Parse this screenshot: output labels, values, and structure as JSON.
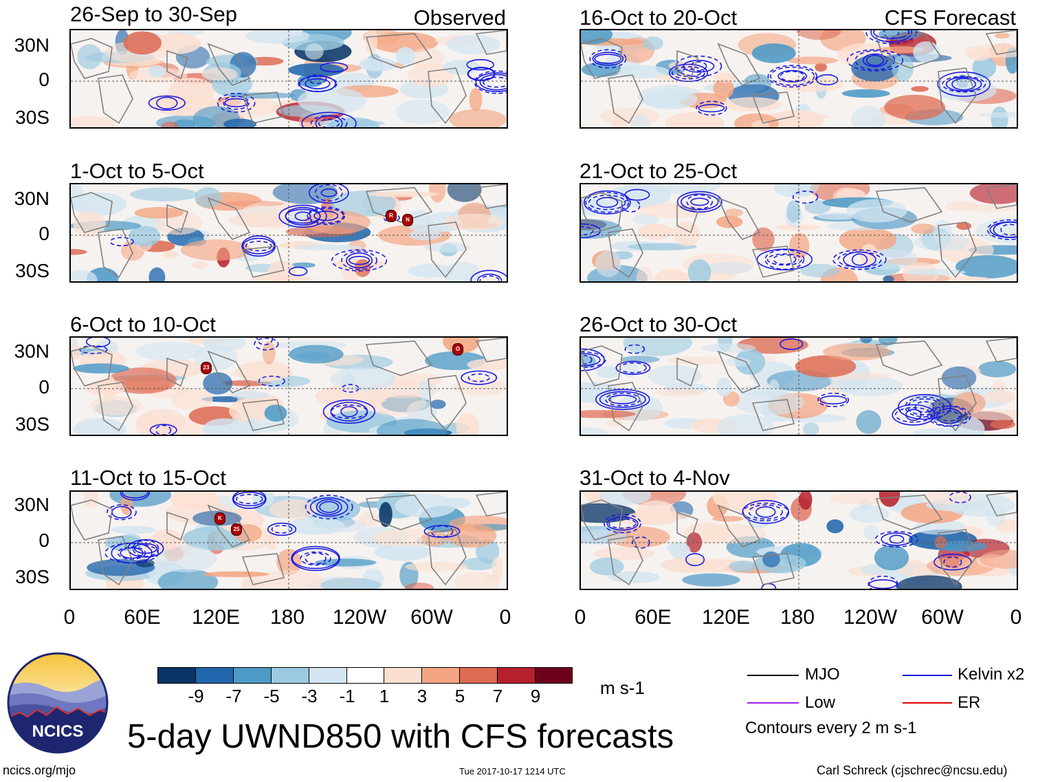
{
  "colors": {
    "pos1": "#fbe0d2",
    "pos3": "#f4a683",
    "pos5": "#de6b54",
    "pos7": "#b7202d",
    "pos9": "#6d011b",
    "neg1": "#d3e5f0",
    "neg3": "#9ccae0",
    "neg5": "#4d9ac6",
    "neg7": "#2166ac",
    "neg9": "#083467",
    "kelvin": "#1a1ae0",
    "mjo": "#000000",
    "low": "#a020f0",
    "er": "#e00000",
    "land": "#808080"
  },
  "panels": {
    "left": [
      {
        "title": "26-Sep to 30-Sep",
        "tag": "Observed",
        "storms": []
      },
      {
        "title": "1-Oct to 5-Oct",
        "tag": "",
        "storms": [
          "R",
          "N"
        ]
      },
      {
        "title": "6-Oct to 10-Oct",
        "tag": "",
        "storms": [
          "23",
          "O"
        ]
      },
      {
        "title": "11-Oct to 15-Oct",
        "tag": "",
        "storms": [
          "K",
          "25"
        ]
      }
    ],
    "right": [
      {
        "title": "16-Oct to 20-Oct",
        "tag": "CFS Forecast"
      },
      {
        "title": "21-Oct to 25-Oct",
        "tag": ""
      },
      {
        "title": "26-Oct to 30-Oct",
        "tag": ""
      },
      {
        "title": "31-Oct to 4-Nov",
        "tag": ""
      }
    ]
  },
  "lat_labels": [
    "30N",
    "0",
    "30S"
  ],
  "lon_labels": [
    "0",
    "60E",
    "120E",
    "180",
    "120W",
    "60W",
    "0"
  ],
  "colorbar": {
    "ticks": [
      "-9",
      "-7",
      "-5",
      "-3",
      "-1",
      "1",
      "3",
      "5",
      "7",
      "9"
    ],
    "units": "m s-1"
  },
  "legend": {
    "mjo": "MJO",
    "kelvin": "Kelvin x2",
    "low": "Low",
    "er": "ER",
    "note": "Contours every 2 m s-1"
  },
  "logo": {
    "text": "NCICS"
  },
  "main_title": "5-day UWND850 with CFS forecasts",
  "footer": {
    "url": "ncics.org/mjo",
    "timestamp": "Tue 2017-10-17 1214 UTC",
    "credit": "Carl Schreck (cjschrec@ncsu.edu)"
  }
}
